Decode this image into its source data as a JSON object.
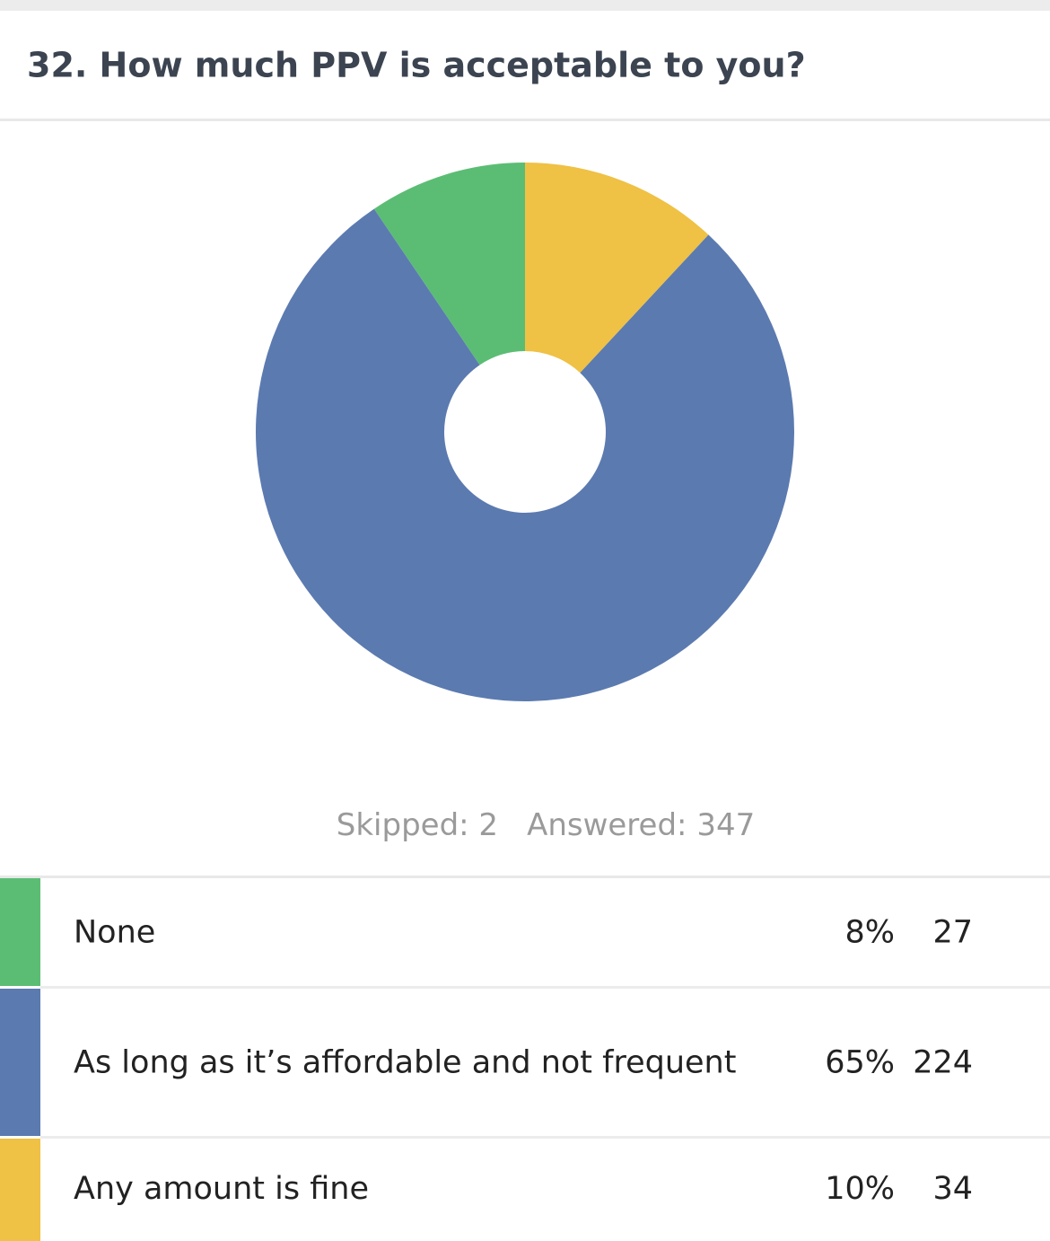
{
  "chart_data": {
    "type": "donut",
    "title": "32. How much PPV is acceptable to you?",
    "categories": [
      "None",
      "As long as it’s affordable and not frequent",
      "Any amount is fine"
    ],
    "values": [
      27,
      224,
      34
    ],
    "percent_labels": [
      "8%",
      "65%",
      "10%"
    ],
    "colors": [
      "#5bbd74",
      "#5b7ab0",
      "#efc144"
    ],
    "skipped": {
      "label": "Skipped:",
      "value": 2
    },
    "answered": {
      "label": "Answered:",
      "value": 347
    }
  }
}
